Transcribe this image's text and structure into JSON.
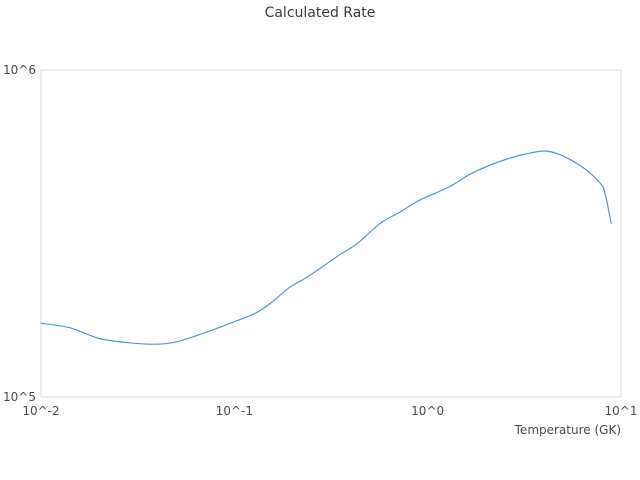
{
  "title": "Calculated Rate",
  "chart_data": {
    "type": "line",
    "title": "Calculated Rate",
    "xlabel": "Temperature (GK)",
    "ylabel": "",
    "x_scale": "log",
    "y_scale": "log",
    "xlim": [
      0.01,
      10
    ],
    "ylim": [
      100000,
      1000000
    ],
    "grid": false,
    "legend": false,
    "x_ticks": [
      {
        "value": 0.01,
        "label": "10^-2"
      },
      {
        "value": 0.1,
        "label": "10^-1"
      },
      {
        "value": 1,
        "label": "10^0"
      },
      {
        "value": 10,
        "label": "10^1"
      }
    ],
    "y_ticks": [
      {
        "value": 100000,
        "label": "10^5"
      },
      {
        "value": 1000000,
        "label": "10^6"
      }
    ],
    "line_color": "#4f97e0",
    "border_color": "#d9d9d9",
    "series": [
      {
        "x": [
          0.01,
          0.014,
          0.02,
          0.027,
          0.037,
          0.049,
          0.07,
          0.1,
          0.13,
          0.16,
          0.19,
          0.23,
          0.28,
          0.35,
          0.43,
          0.57,
          0.72,
          0.91,
          1.3,
          1.7,
          2.4,
          3.2,
          4.3,
          6.1,
          7.8,
          8.3,
          8.9
        ],
        "y": [
          168000,
          163000,
          151000,
          147000,
          145000,
          147000,
          157000,
          170000,
          181000,
          197000,
          215000,
          230000,
          248000,
          272000,
          294000,
          340000,
          368000,
          400000,
          440000,
          484000,
          527000,
          553000,
          563000,
          512000,
          451000,
          415000,
          340000
        ]
      }
    ]
  }
}
